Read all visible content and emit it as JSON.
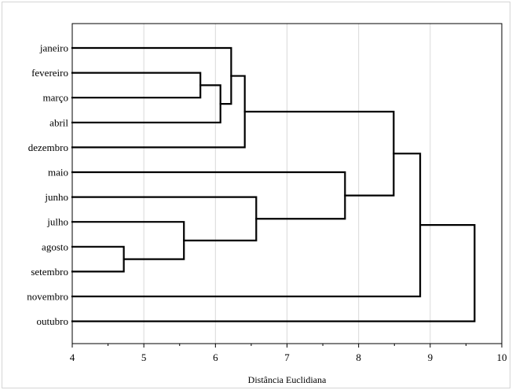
{
  "chart_data": {
    "type": "dendrogram",
    "title": "",
    "xlabel": "Distância Euclidiana",
    "ylabel": "",
    "xlim": [
      4,
      10
    ],
    "xticks": [
      4,
      5,
      6,
      7,
      8,
      9,
      10
    ],
    "grid": true,
    "leaves": [
      "janeiro",
      "fevereiro",
      "março",
      "abril",
      "dezembro",
      "maio",
      "junho",
      "julho",
      "agosto",
      "setembro",
      "novembro",
      "outubro"
    ],
    "merges": [
      {
        "id": "c1",
        "left": "agosto",
        "right": "setembro",
        "height": 4.72
      },
      {
        "id": "c2",
        "left": "julho",
        "right": "c1",
        "height": 5.56
      },
      {
        "id": "c3",
        "left": "fevereiro",
        "right": "março",
        "height": 5.79
      },
      {
        "id": "c4",
        "left": "c3",
        "right": "abril",
        "height": 6.07
      },
      {
        "id": "c5",
        "left": "janeiro",
        "right": "c4",
        "height": 6.22
      },
      {
        "id": "c6",
        "left": "c5",
        "right": "dezembro",
        "height": 6.41
      },
      {
        "id": "c7",
        "left": "junho",
        "right": "c2",
        "height": 6.57
      },
      {
        "id": "c8",
        "left": "maio",
        "right": "c7",
        "height": 7.81
      },
      {
        "id": "c9",
        "left": "c6",
        "right": "c8",
        "height": 8.49
      },
      {
        "id": "c10",
        "left": "c9",
        "right": "novembro",
        "height": 8.86
      },
      {
        "id": "c11",
        "left": "c10",
        "right": "outubro",
        "height": 9.62
      }
    ]
  }
}
